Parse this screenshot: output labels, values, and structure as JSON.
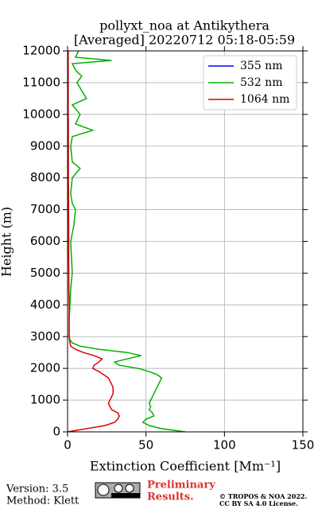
{
  "chart_data": {
    "type": "line",
    "title": "pollyxt_noa at Antikythera",
    "subtitle": "[Averaged] 20220712 05:18-05:59",
    "xlabel": "Extinction Coefficient [Mm⁻¹]",
    "ylabel": "Height (m)",
    "xlim": [
      0,
      150
    ],
    "xticks": [
      0,
      50,
      100,
      150
    ],
    "ylim": [
      0,
      12000
    ],
    "yticks": [
      0,
      1000,
      2000,
      3000,
      4000,
      5000,
      6000,
      7000,
      8000,
      9000,
      10000,
      11000,
      12000
    ],
    "grid": true,
    "legend": "upper right",
    "heights": [
      0,
      100,
      200,
      300,
      400,
      500,
      600,
      700,
      800,
      900,
      1000,
      1100,
      1200,
      1300,
      1400,
      1500,
      1600,
      1700,
      1800,
      1900,
      2000,
      2100,
      2200,
      2300,
      2400,
      2500,
      2600,
      2700,
      2800,
      2900,
      3000,
      3500,
      4000,
      4500,
      5000,
      5500,
      6000,
      6500,
      7000,
      7200,
      7500,
      8000,
      8300,
      8500,
      9000,
      9300,
      9500,
      9700,
      10000,
      10300,
      10500,
      11000,
      11200,
      11400,
      11600,
      11700,
      11800,
      12000
    ],
    "series": [
      {
        "name": "355 nm",
        "color": "#0000ff",
        "values": [
          null,
          null,
          null,
          null,
          null,
          null,
          null,
          null,
          null,
          null,
          null,
          null,
          null,
          null,
          null,
          null,
          null,
          null,
          null,
          null,
          null,
          null,
          null,
          null,
          null,
          null,
          null,
          null,
          null,
          null,
          null,
          null,
          null,
          null,
          null,
          null,
          null,
          null,
          null,
          null,
          null,
          null,
          null,
          null,
          null,
          null,
          null,
          null,
          null,
          null,
          null,
          null,
          null,
          null,
          null,
          null,
          null,
          null
        ]
      },
      {
        "name": "532 nm",
        "color": "#00b000",
        "values": [
          75,
          60,
          52,
          48,
          50,
          55,
          54,
          52,
          53,
          52,
          53,
          54,
          55,
          56,
          57,
          58,
          59,
          60,
          57,
          52,
          45,
          33,
          30,
          38,
          47,
          38,
          20,
          8,
          3,
          1.5,
          1,
          1,
          1.5,
          2,
          3,
          2.5,
          2,
          4,
          5,
          3,
          2,
          3,
          8,
          3,
          2,
          3,
          16,
          5,
          8,
          3,
          12,
          6,
          9,
          5,
          3,
          28,
          5,
          7
        ]
      },
      {
        "name": "1064 nm",
        "color": "#dd0000",
        "values": [
          0,
          12,
          24,
          30,
          32,
          33,
          32,
          28,
          27,
          26,
          27,
          28,
          29,
          29,
          29,
          28,
          27,
          26,
          23,
          20,
          16,
          17,
          20,
          22,
          17,
          10,
          5,
          2,
          1.5,
          1.2,
          1,
          1,
          1,
          0.8,
          0.8,
          0.7,
          0.7,
          0.7,
          0.6,
          0.6,
          0.6,
          0.5,
          0.5,
          0.5,
          0.5,
          0.5,
          0.5,
          0.5,
          0.4,
          0.4,
          0.4,
          0.4,
          0.4,
          0.4,
          0.4,
          0.4,
          0.4,
          0.4
        ]
      }
    ]
  },
  "footer": {
    "version": "Version: 3.5",
    "method": "Method: Klett",
    "preliminary": [
      "Preliminary",
      "Results."
    ],
    "copyright": [
      "© TROPOS & NOA 2022.",
      "CC BY SA 4.0 License."
    ]
  }
}
